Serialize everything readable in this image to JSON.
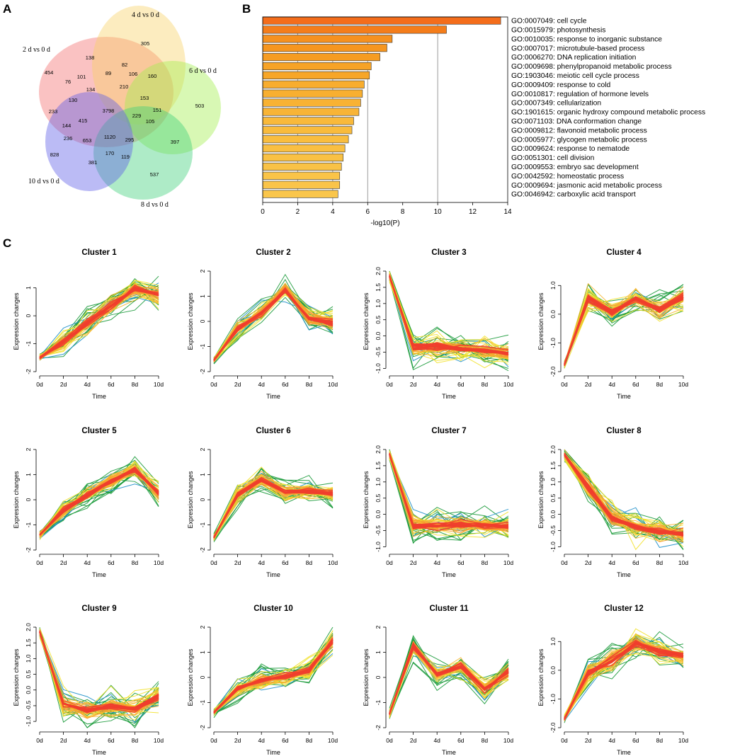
{
  "panel_labels": {
    "a": "A",
    "b": "B",
    "c": "C"
  },
  "chart_data": [
    {
      "type": "venn",
      "panel": "A",
      "sets": [
        {
          "name": "2 d vs 0 d",
          "color": "#f26d6d"
        },
        {
          "name": "4 d vs 0 d",
          "color": "#f7d266"
        },
        {
          "name": "6 d vs 0 d",
          "color": "#a3ef4d"
        },
        {
          "name": "8 d vs 0 d",
          "color": "#3fcf7a"
        },
        {
          "name": "10 d vs 0 d",
          "color": "#5c5ce6"
        }
      ],
      "region_counts": [
        "454",
        "305",
        "503",
        "537",
        "828",
        "138",
        "101",
        "89",
        "82",
        "106",
        "160",
        "76",
        "210",
        "134",
        "130",
        "153",
        "151",
        "233",
        "3798",
        "229",
        "144",
        "415",
        "105",
        "236",
        "653",
        "1120",
        "295",
        "397",
        "170",
        "119",
        "381"
      ]
    },
    {
      "type": "bar",
      "panel": "B",
      "orientation": "horizontal",
      "xlabel": "-log10(P)",
      "xlim": [
        0,
        14
      ],
      "xticks": [
        "0",
        "2",
        "4",
        "6",
        "8",
        "10",
        "12",
        "14"
      ],
      "grid": true,
      "terms": [
        "GO:0007049: cell cycle",
        "GO:0015979: photosynthesis",
        "GO:0010035: response to inorganic substance",
        "GO:0007017: microtubule-based process",
        "GO:0006270: DNA replication initiation",
        "GO:0009698: phenylpropanoid metabolic process",
        "GO:1903046: meiotic cell cycle process",
        "GO:0009409: response to cold",
        "GO:0010817: regulation of hormone levels",
        "GO:0007349: cellularization",
        "GO:1901615: organic hydroxy compound metabolic process",
        "GO:0071103: DNA conformation change",
        "GO:0009812: flavonoid metabolic process",
        "GO:0005977: glycogen metabolic process",
        "GO:0009624: response to nematode",
        "GO:0051301: cell division",
        "GO:0009553: embryo sac development",
        "GO:0042592: homeostatic process",
        "GO:0009694: jasmonic acid metabolic process",
        "GO:0046942: carboxylic acid transport"
      ],
      "values": [
        13.6,
        10.5,
        7.4,
        7.1,
        6.7,
        6.2,
        6.1,
        5.8,
        5.7,
        5.6,
        5.5,
        5.2,
        5.1,
        4.9,
        4.7,
        4.6,
        4.5,
        4.4,
        4.4,
        4.3
      ],
      "bar_colors": [
        "#f46d1b",
        "#f47d1b",
        "#f6911f",
        "#f6961f",
        "#f69c22",
        "#f7a326",
        "#f7a628",
        "#f8ad2e",
        "#f8af30",
        "#f8b233",
        "#f8b436",
        "#f9b93a",
        "#f9bb3c",
        "#f9bd3f",
        "#f9bf42",
        "#f9c144",
        "#f9c246",
        "#fac448",
        "#fac449",
        "#fac64b"
      ]
    },
    {
      "type": "line",
      "panel": "C",
      "x": [
        "0d",
        "2d",
        "4d",
        "6d",
        "8d",
        "10d"
      ],
      "xlabel": "Time",
      "ylabel": "Expression changes",
      "palette": [
        "#1a9a3a",
        "#1e8fc9",
        "#f2e12a",
        "#f7b731",
        "#f79a2e",
        "#ef3e2e"
      ],
      "clusters": [
        {
          "title": "Cluster 1",
          "ylim": [
            -2,
            1.6
          ],
          "yticks": [
            "-2",
            "-1",
            "0",
            "1"
          ],
          "ytick_values": [
            -2,
            -1,
            0,
            1
          ],
          "center": [
            -1.5,
            -0.95,
            -0.25,
            0.35,
            0.95,
            0.75
          ]
        },
        {
          "title": "Cluster 2",
          "ylim": [
            -2,
            2
          ],
          "yticks": [
            "-2",
            "-1",
            "0",
            "1",
            "2"
          ],
          "ytick_values": [
            -2,
            -1,
            0,
            1,
            2
          ],
          "center": [
            -1.55,
            -0.3,
            0.35,
            1.25,
            0.1,
            -0.05
          ]
        },
        {
          "title": "Cluster 3",
          "ylim": [
            -1.1,
            2.0
          ],
          "yticks": [
            "-1.0",
            "-0.5",
            "0.0",
            "0.5",
            "1.0",
            "1.5",
            "2.0"
          ],
          "ytick_values": [
            -1,
            -0.5,
            0,
            0.5,
            1,
            1.5,
            2
          ],
          "center": [
            1.85,
            -0.35,
            -0.3,
            -0.4,
            -0.45,
            -0.55
          ]
        },
        {
          "title": "Cluster 4",
          "ylim": [
            -2.0,
            1.5
          ],
          "yticks": [
            "-2.0",
            "-1.0",
            "0.0",
            "1.0"
          ],
          "ytick_values": [
            -2,
            -1,
            0,
            1
          ],
          "center": [
            -1.75,
            0.55,
            0.1,
            0.55,
            0.15,
            0.6
          ]
        },
        {
          "title": "Cluster 5",
          "ylim": [
            -2,
            2
          ],
          "yticks": [
            "-2",
            "-1",
            "0",
            "1",
            "2"
          ],
          "ytick_values": [
            -2,
            -1,
            0,
            1,
            2
          ],
          "center": [
            -1.4,
            -0.45,
            0.2,
            0.75,
            1.2,
            0.25
          ]
        },
        {
          "title": "Cluster 6",
          "ylim": [
            -2,
            2
          ],
          "yticks": [
            "-2",
            "-1",
            "0",
            "1",
            "2"
          ],
          "ytick_values": [
            -2,
            -1,
            0,
            1,
            2
          ],
          "center": [
            -1.5,
            0.2,
            0.8,
            0.3,
            0.35,
            0.25
          ]
        },
        {
          "title": "Cluster 7",
          "ylim": [
            -1.1,
            2.0
          ],
          "yticks": [
            "-1.0",
            "-0.5",
            "0.0",
            "0.5",
            "1.0",
            "1.5",
            "2.0"
          ],
          "ytick_values": [
            -1,
            -0.5,
            0,
            0.5,
            1,
            1.5,
            2
          ],
          "center": [
            1.85,
            -0.35,
            -0.35,
            -0.3,
            -0.35,
            -0.35
          ]
        },
        {
          "title": "Cluster 8",
          "ylim": [
            -1.1,
            2.0
          ],
          "yticks": [
            "-1.0",
            "-0.5",
            "0.0",
            "0.5",
            "1.0",
            "1.5",
            "2.0"
          ],
          "ytick_values": [
            -1,
            -0.5,
            0,
            0.5,
            1,
            1.5,
            2
          ],
          "center": [
            1.85,
            0.85,
            -0.1,
            -0.4,
            -0.55,
            -0.6
          ]
        },
        {
          "title": "Cluster 9",
          "ylim": [
            -1.2,
            2.0
          ],
          "yticks": [
            "-1.0",
            "-0.5",
            "0.0",
            "0.5",
            "1.0",
            "1.5",
            "2.0"
          ],
          "ytick_values": [
            -1,
            -0.5,
            0,
            0.5,
            1,
            1.5,
            2
          ],
          "center": [
            1.85,
            -0.45,
            -0.65,
            -0.5,
            -0.6,
            -0.2
          ]
        },
        {
          "title": "Cluster 10",
          "ylim": [
            -2,
            2
          ],
          "yticks": [
            "-2",
            "-1",
            "0",
            "1",
            "2"
          ],
          "ytick_values": [
            -2,
            -1,
            0,
            1,
            2
          ],
          "center": [
            -1.4,
            -0.45,
            -0.1,
            0.05,
            0.3,
            1.45
          ]
        },
        {
          "title": "Cluster 11",
          "ylim": [
            -2,
            2
          ],
          "yticks": [
            "-2",
            "-1",
            "0",
            "1",
            "2"
          ],
          "ytick_values": [
            -2,
            -1,
            0,
            1,
            2
          ],
          "center": [
            -1.45,
            1.25,
            0.1,
            0.45,
            -0.45,
            0.2
          ]
        },
        {
          "title": "Cluster 12",
          "ylim": [
            -2.0,
            1.5
          ],
          "yticks": [
            "-2.0",
            "-1.0",
            "0.0",
            "1.0"
          ],
          "ytick_values": [
            -2,
            -1,
            0,
            1
          ],
          "center": [
            -1.7,
            -0.1,
            0.35,
            0.95,
            0.65,
            0.5
          ]
        }
      ]
    }
  ]
}
